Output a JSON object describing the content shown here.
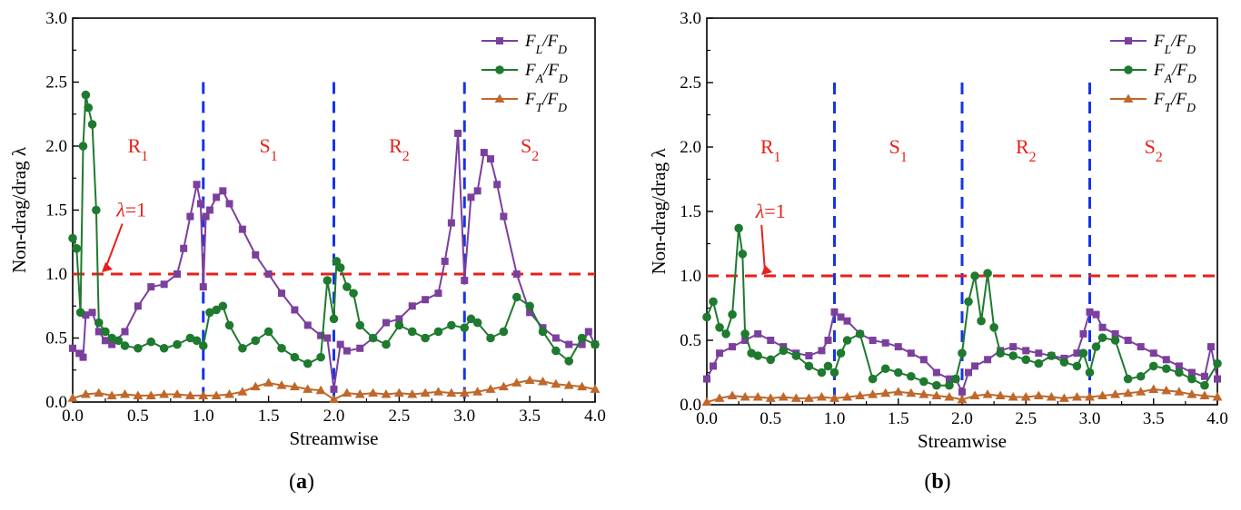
{
  "chart_data": [
    {
      "panel_label": "(a)",
      "type": "line",
      "xlabel": "Streamwise",
      "ylabel": "Non-drag/drag λ",
      "xlim": [
        0,
        4
      ],
      "ylim": [
        0,
        3
      ],
      "xticks": [
        "0.0",
        "0.5",
        "1.0",
        "1.5",
        "2.0",
        "2.5",
        "3.0",
        "3.5",
        "4.0"
      ],
      "yticks": [
        "0.0",
        "0.5",
        "1.0",
        "1.5",
        "2.0",
        "2.5",
        "3.0"
      ],
      "regions": [
        {
          "label": "R",
          "sub": "1",
          "x": 0.5
        },
        {
          "label": "S",
          "sub": "1",
          "x": 1.5
        },
        {
          "label": "R",
          "sub": "2",
          "x": 2.5
        },
        {
          "label": "S",
          "sub": "2",
          "x": 3.5
        }
      ],
      "boundaries": [
        1.0,
        2.0,
        3.0
      ],
      "reference": {
        "y": 1.0,
        "label": "λ=1",
        "label_x": 0.45,
        "label_y": 1.45
      },
      "legend_position": "top-right",
      "series": [
        {
          "name": "F_L/F_D",
          "num": "F",
          "num_sub": "L",
          "den": "F",
          "den_sub": "D",
          "color": "#7B3F9E",
          "marker": "square",
          "x": [
            0.0,
            0.05,
            0.08,
            0.1,
            0.15,
            0.2,
            0.25,
            0.3,
            0.4,
            0.5,
            0.6,
            0.7,
            0.8,
            0.85,
            0.9,
            0.95,
            0.98,
            1.0,
            1.02,
            1.05,
            1.1,
            1.15,
            1.2,
            1.3,
            1.4,
            1.5,
            1.6,
            1.7,
            1.8,
            1.9,
            1.95,
            2.0,
            2.05,
            2.1,
            2.2,
            2.3,
            2.4,
            2.5,
            2.6,
            2.7,
            2.8,
            2.85,
            2.9,
            2.95,
            3.0,
            3.05,
            3.1,
            3.15,
            3.2,
            3.25,
            3.3,
            3.4,
            3.5,
            3.6,
            3.7,
            3.8,
            3.9,
            3.95,
            4.0
          ],
          "values": [
            0.42,
            0.38,
            0.35,
            0.68,
            0.7,
            0.55,
            0.48,
            0.45,
            0.55,
            0.75,
            0.9,
            0.92,
            1.0,
            1.2,
            1.45,
            1.7,
            1.55,
            0.9,
            1.45,
            1.5,
            1.6,
            1.65,
            1.55,
            1.35,
            1.15,
            1.0,
            0.85,
            0.72,
            0.6,
            0.52,
            0.5,
            0.1,
            0.45,
            0.4,
            0.42,
            0.5,
            0.62,
            0.65,
            0.75,
            0.8,
            0.85,
            1.1,
            1.4,
            2.1,
            0.95,
            1.6,
            1.65,
            1.95,
            1.9,
            1.7,
            1.45,
            1.0,
            0.7,
            0.58,
            0.5,
            0.45,
            0.45,
            0.55,
            0.45
          ]
        },
        {
          "name": "F_A/F_D",
          "num": "F",
          "num_sub": "A",
          "den": "F",
          "den_sub": "D",
          "color": "#1E7A2E",
          "marker": "circle",
          "x": [
            0.0,
            0.03,
            0.06,
            0.08,
            0.1,
            0.12,
            0.15,
            0.18,
            0.2,
            0.25,
            0.3,
            0.35,
            0.4,
            0.5,
            0.6,
            0.7,
            0.8,
            0.9,
            0.95,
            1.0,
            1.05,
            1.1,
            1.15,
            1.2,
            1.3,
            1.4,
            1.5,
            1.6,
            1.7,
            1.8,
            1.9,
            1.95,
            2.0,
            2.02,
            2.05,
            2.1,
            2.15,
            2.2,
            2.3,
            2.4,
            2.5,
            2.6,
            2.7,
            2.8,
            2.9,
            3.0,
            3.05,
            3.1,
            3.2,
            3.3,
            3.4,
            3.5,
            3.6,
            3.7,
            3.8,
            3.9,
            4.0
          ],
          "values": [
            1.28,
            1.2,
            0.7,
            2.0,
            2.4,
            2.3,
            2.17,
            1.5,
            0.62,
            0.55,
            0.5,
            0.48,
            0.44,
            0.42,
            0.47,
            0.42,
            0.45,
            0.5,
            0.48,
            0.44,
            0.7,
            0.72,
            0.75,
            0.6,
            0.42,
            0.48,
            0.55,
            0.42,
            0.35,
            0.3,
            0.35,
            0.95,
            0.65,
            1.1,
            1.05,
            0.9,
            0.85,
            0.6,
            0.5,
            0.45,
            0.6,
            0.55,
            0.5,
            0.55,
            0.6,
            0.58,
            0.65,
            0.62,
            0.5,
            0.55,
            0.82,
            0.75,
            0.55,
            0.4,
            0.32,
            0.5,
            0.45
          ]
        },
        {
          "name": "F_T/F_D",
          "num": "F",
          "num_sub": "T",
          "den": "F",
          "den_sub": "D",
          "color": "#C0672A",
          "marker": "triangle",
          "x": [
            0.0,
            0.1,
            0.2,
            0.3,
            0.4,
            0.5,
            0.6,
            0.7,
            0.8,
            0.9,
            1.0,
            1.1,
            1.2,
            1.3,
            1.4,
            1.5,
            1.6,
            1.7,
            1.8,
            1.9,
            2.0,
            2.1,
            2.2,
            2.3,
            2.4,
            2.5,
            2.6,
            2.7,
            2.8,
            2.9,
            3.0,
            3.1,
            3.2,
            3.3,
            3.4,
            3.5,
            3.6,
            3.7,
            3.8,
            3.9,
            4.0
          ],
          "values": [
            0.03,
            0.06,
            0.07,
            0.05,
            0.06,
            0.05,
            0.05,
            0.06,
            0.06,
            0.05,
            0.05,
            0.05,
            0.06,
            0.08,
            0.12,
            0.15,
            0.13,
            0.12,
            0.1,
            0.09,
            0.02,
            0.07,
            0.06,
            0.07,
            0.06,
            0.07,
            0.06,
            0.07,
            0.08,
            0.07,
            0.07,
            0.08,
            0.1,
            0.12,
            0.15,
            0.17,
            0.16,
            0.14,
            0.13,
            0.12,
            0.1
          ]
        }
      ]
    },
    {
      "panel_label": "(b)",
      "type": "line",
      "xlabel": "Streamwise",
      "ylabel": "Non-drag/drag λ",
      "xlim": [
        0,
        4
      ],
      "ylim": [
        0,
        3
      ],
      "xticks": [
        "0.0",
        "0.5",
        "1.0",
        "1.5",
        "2.0",
        "2.5",
        "3.0",
        "3.5",
        "4.0"
      ],
      "yticks": [
        "0.0",
        "0.5",
        "1.0",
        "1.5",
        "2.0",
        "2.5",
        "3.0"
      ],
      "regions": [
        {
          "label": "R",
          "sub": "1",
          "x": 0.5
        },
        {
          "label": "S",
          "sub": "1",
          "x": 1.5
        },
        {
          "label": "R",
          "sub": "2",
          "x": 2.5
        },
        {
          "label": "S",
          "sub": "2",
          "x": 3.5
        }
      ],
      "boundaries": [
        1.0,
        2.0,
        3.0
      ],
      "reference": {
        "y": 1.0,
        "label": "λ=1",
        "label_x": 0.5,
        "label_y": 1.45
      },
      "legend_position": "top-right",
      "series": [
        {
          "name": "F_L/F_D",
          "num": "F",
          "num_sub": "L",
          "den": "F",
          "den_sub": "D",
          "color": "#7B3F9E",
          "marker": "square",
          "x": [
            0.0,
            0.05,
            0.1,
            0.2,
            0.3,
            0.4,
            0.5,
            0.6,
            0.7,
            0.8,
            0.9,
            0.95,
            1.0,
            1.05,
            1.1,
            1.2,
            1.3,
            1.4,
            1.5,
            1.6,
            1.7,
            1.8,
            1.9,
            1.95,
            2.0,
            2.05,
            2.1,
            2.2,
            2.3,
            2.4,
            2.5,
            2.6,
            2.7,
            2.8,
            2.9,
            2.95,
            3.0,
            3.05,
            3.1,
            3.2,
            3.3,
            3.4,
            3.5,
            3.6,
            3.7,
            3.8,
            3.9,
            3.95,
            4.0
          ],
          "values": [
            0.2,
            0.3,
            0.4,
            0.45,
            0.5,
            0.55,
            0.5,
            0.45,
            0.4,
            0.38,
            0.42,
            0.5,
            0.72,
            0.68,
            0.65,
            0.55,
            0.5,
            0.48,
            0.45,
            0.4,
            0.35,
            0.25,
            0.2,
            0.2,
            0.1,
            0.25,
            0.3,
            0.35,
            0.42,
            0.45,
            0.42,
            0.4,
            0.38,
            0.36,
            0.4,
            0.55,
            0.72,
            0.7,
            0.6,
            0.55,
            0.5,
            0.45,
            0.4,
            0.35,
            0.3,
            0.25,
            0.22,
            0.45,
            0.2
          ]
        },
        {
          "name": "F_A/F_D",
          "num": "F",
          "num_sub": "A",
          "den": "F",
          "den_sub": "D",
          "color": "#1E7A2E",
          "marker": "circle",
          "x": [
            0.0,
            0.05,
            0.1,
            0.15,
            0.2,
            0.25,
            0.28,
            0.3,
            0.35,
            0.4,
            0.5,
            0.6,
            0.7,
            0.8,
            0.9,
            0.95,
            1.0,
            1.05,
            1.1,
            1.2,
            1.3,
            1.4,
            1.5,
            1.6,
            1.7,
            1.8,
            1.9,
            1.95,
            2.0,
            2.05,
            2.1,
            2.15,
            2.2,
            2.25,
            2.3,
            2.4,
            2.5,
            2.6,
            2.7,
            2.8,
            2.9,
            2.95,
            3.0,
            3.05,
            3.1,
            3.2,
            3.3,
            3.4,
            3.5,
            3.6,
            3.7,
            3.8,
            3.9,
            4.0
          ],
          "values": [
            0.68,
            0.8,
            0.6,
            0.55,
            0.7,
            1.37,
            1.17,
            0.55,
            0.4,
            0.38,
            0.35,
            0.42,
            0.38,
            0.3,
            0.25,
            0.3,
            0.25,
            0.4,
            0.5,
            0.55,
            0.2,
            0.28,
            0.25,
            0.22,
            0.18,
            0.15,
            0.15,
            0.2,
            0.4,
            0.8,
            1.0,
            0.65,
            1.02,
            0.6,
            0.4,
            0.38,
            0.35,
            0.32,
            0.38,
            0.33,
            0.3,
            0.4,
            0.25,
            0.45,
            0.52,
            0.5,
            0.2,
            0.22,
            0.3,
            0.28,
            0.25,
            0.2,
            0.15,
            0.32
          ]
        },
        {
          "name": "F_T/F_D",
          "num": "F",
          "num_sub": "T",
          "den": "F",
          "den_sub": "D",
          "color": "#C0672A",
          "marker": "triangle",
          "x": [
            0.0,
            0.1,
            0.2,
            0.3,
            0.4,
            0.5,
            0.6,
            0.7,
            0.8,
            0.9,
            1.0,
            1.1,
            1.2,
            1.3,
            1.4,
            1.5,
            1.6,
            1.7,
            1.8,
            1.9,
            2.0,
            2.1,
            2.2,
            2.3,
            2.4,
            2.5,
            2.6,
            2.7,
            2.8,
            2.9,
            3.0,
            3.1,
            3.2,
            3.3,
            3.4,
            3.5,
            3.6,
            3.7,
            3.8,
            3.9,
            4.0
          ],
          "values": [
            0.02,
            0.05,
            0.07,
            0.06,
            0.06,
            0.05,
            0.06,
            0.05,
            0.05,
            0.06,
            0.05,
            0.06,
            0.07,
            0.08,
            0.09,
            0.1,
            0.09,
            0.08,
            0.07,
            0.06,
            0.04,
            0.07,
            0.08,
            0.07,
            0.06,
            0.06,
            0.07,
            0.06,
            0.05,
            0.06,
            0.06,
            0.07,
            0.08,
            0.09,
            0.1,
            0.12,
            0.11,
            0.1,
            0.08,
            0.07,
            0.06
          ]
        }
      ]
    }
  ],
  "colors": {
    "axis": "#000000",
    "region_label": "#E8201A",
    "boundary": "#1534E8",
    "reference_line": "#E8201A"
  }
}
